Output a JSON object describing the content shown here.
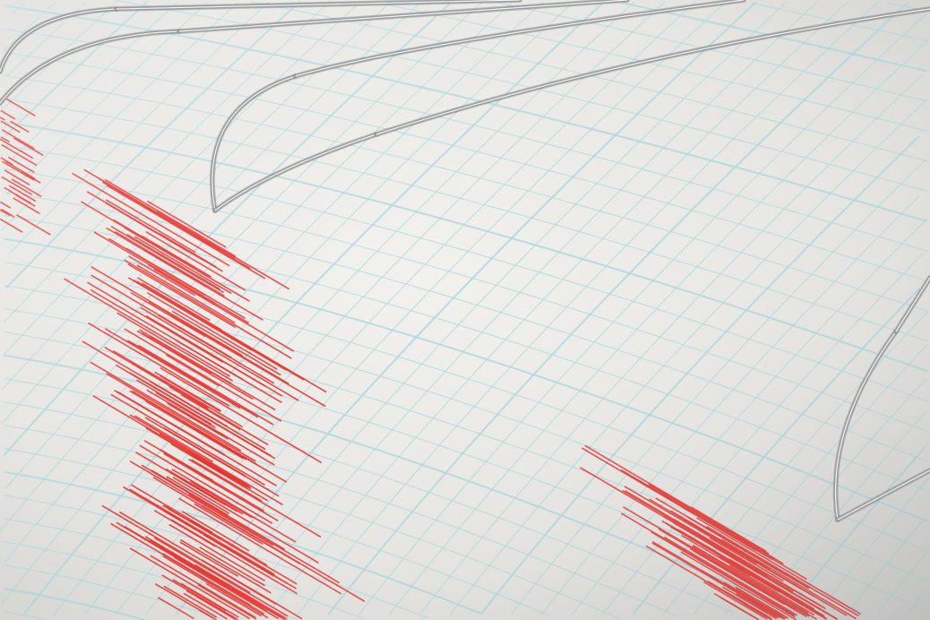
{
  "scene": {
    "subject": "seismograph",
    "colors": {
      "paper": "#ecebe8",
      "paper_shadow": "#cfcfcc",
      "grid": "#a9d6dc",
      "trace": "#e8322e",
      "needle": "#9a9c9e",
      "needle_highlight": "#f4f4f4"
    }
  }
}
